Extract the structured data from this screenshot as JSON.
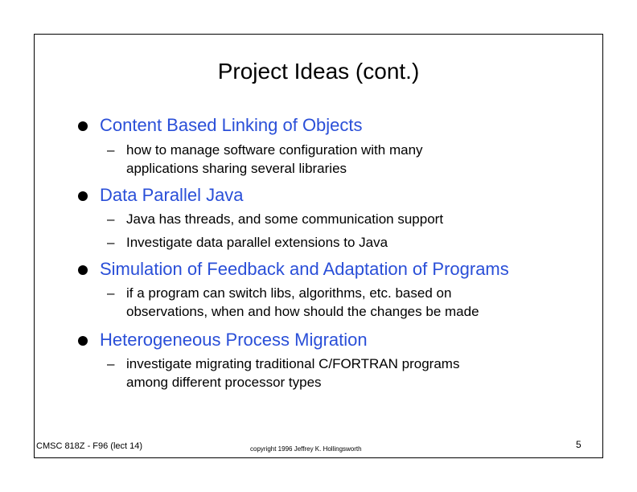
{
  "slide": {
    "title": "Project Ideas (cont.)",
    "accent_color": "#2a4fd8",
    "sections": [
      {
        "heading": "Content Based Linking of Objects",
        "subitems": [
          [
            "how to manage software configuration with many",
            "applications sharing several libraries"
          ]
        ]
      },
      {
        "heading": "Data Parallel Java",
        "subitems": [
          [
            "Java has threads, and some communication support"
          ],
          [
            "Investigate data parallel extensions to Java"
          ]
        ]
      },
      {
        "heading": "Simulation of Feedback and Adaptation of Programs",
        "subitems": [
          [
            "if a program can switch libs, algorithms, etc. based on",
            "observations, when and how should the changes be made"
          ]
        ]
      },
      {
        "heading": "Heterogeneous Process Migration",
        "subitems": [
          [
            "investigate migrating traditional C/FORTRAN programs",
            "among different processor types"
          ]
        ]
      }
    ]
  },
  "footer": {
    "course": "CMSC 818Z - F96  (lect 14)",
    "copyright": "copyright 1996  Jeffrey K. Hollingsworth",
    "page_number": "5"
  }
}
